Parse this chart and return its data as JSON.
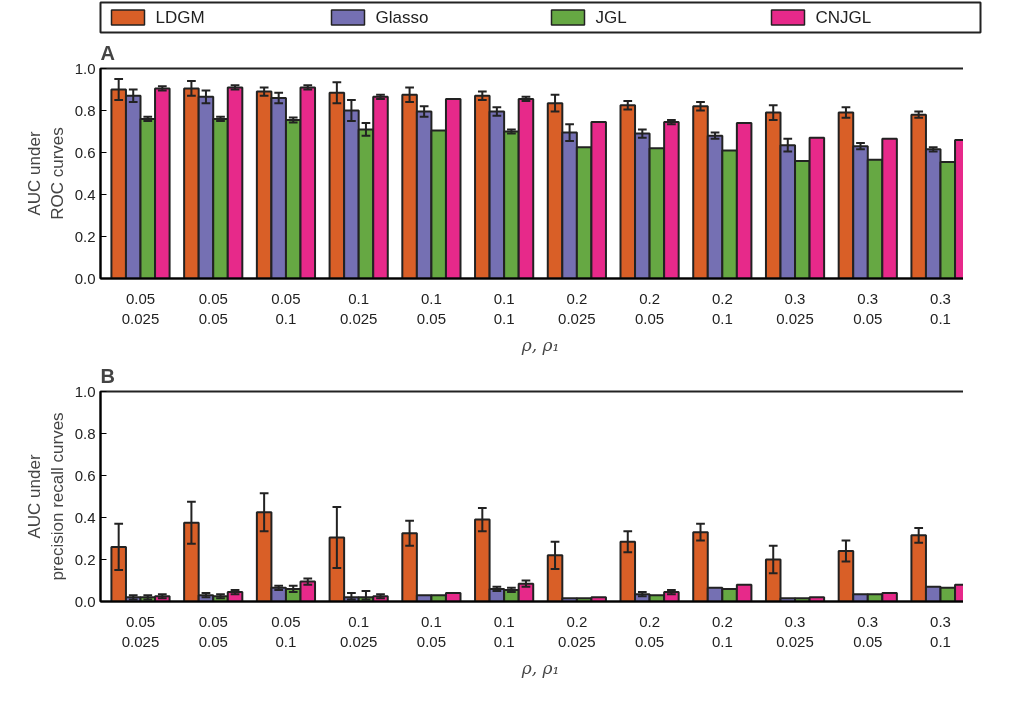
{
  "chart_data": [
    {
      "type": "bar",
      "title": "A",
      "ylabel": "AUC under\nROC curves",
      "xlabel": "ρ, ρ₁",
      "categories": [
        "0.05\n0.025",
        "0.05\n0.05",
        "0.05\n0.1",
        "0.1\n0.025",
        "0.1\n0.05",
        "0.1\n0.1",
        "0.2\n0.025",
        "0.2\n0.05",
        "0.2\n0.1",
        "0.3\n0.025",
        "0.3\n0.05",
        "0.3\n0.1"
      ],
      "series": [
        {
          "name": "LDGM",
          "color": "#d95f27",
          "values": [
            0.9,
            0.905,
            0.89,
            0.885,
            0.875,
            0.87,
            0.835,
            0.825,
            0.82,
            0.79,
            0.79,
            0.78
          ],
          "errors": [
            0.05,
            0.035,
            0.02,
            0.05,
            0.035,
            0.02,
            0.04,
            0.02,
            0.02,
            0.035,
            0.025,
            0.015
          ]
        },
        {
          "name": "Glasso",
          "color": "#7570b3",
          "values": [
            0.87,
            0.865,
            0.86,
            0.8,
            0.795,
            0.795,
            0.695,
            0.69,
            0.68,
            0.635,
            0.63,
            0.615
          ],
          "errors": [
            0.03,
            0.03,
            0.025,
            0.05,
            0.025,
            0.02,
            0.04,
            0.02,
            0.015,
            0.03,
            0.015,
            0.01
          ]
        },
        {
          "name": "JGL",
          "color": "#66a843",
          "values": [
            0.76,
            0.76,
            0.755,
            0.71,
            0.705,
            0.7,
            0.625,
            0.62,
            0.61,
            0.56,
            0.565,
            0.555
          ],
          "errors": [
            0.01,
            0.01,
            0.012,
            0.03,
            null,
            0.01,
            null,
            null,
            null,
            null,
            null,
            null
          ]
        },
        {
          "name": "CNJGL",
          "color": "#e7298a",
          "values": [
            0.905,
            0.91,
            0.91,
            0.865,
            0.855,
            0.855,
            0.745,
            0.745,
            0.74,
            0.67,
            0.665,
            0.66
          ],
          "errors": [
            0.01,
            0.01,
            0.01,
            0.01,
            null,
            0.01,
            null,
            0.01,
            null,
            null,
            null,
            null
          ]
        }
      ],
      "ylim": [
        0,
        1
      ],
      "yticks": [
        {
          "value": 0,
          "label": "0.0"
        },
        {
          "value": 0.2,
          "label": "0.2"
        },
        {
          "value": 0.4,
          "label": "0.4"
        },
        {
          "value": 0.6,
          "label": "0.6"
        },
        {
          "value": 0.8,
          "label": "0.8"
        },
        {
          "value": 1,
          "label": "1.0"
        }
      ],
      "legend": "top",
      "grid": false
    },
    {
      "type": "bar",
      "title": "B",
      "ylabel": "AUC under\nprecision recall curves",
      "xlabel": "ρ, ρ₁",
      "categories": [
        "0.05\n0.025",
        "0.05\n0.05",
        "0.05\n0.1",
        "0.1\n0.025",
        "0.1\n0.05",
        "0.1\n0.1",
        "0.2\n0.025",
        "0.2\n0.05",
        "0.2\n0.1",
        "0.3\n0.025",
        "0.3\n0.05",
        "0.3\n0.1"
      ],
      "series": [
        {
          "color": "#d95f27",
          "values": [
            0.26,
            0.375,
            0.425,
            0.305,
            0.325,
            0.39,
            0.22,
            0.285,
            0.33,
            0.2,
            0.24,
            0.315
          ],
          "errors": [
            0.11,
            0.1,
            0.09,
            0.145,
            0.06,
            0.055,
            0.065,
            0.05,
            0.04,
            0.065,
            0.05,
            0.035
          ]
        },
        {
          "color": "#7570b3",
          "values": [
            0.02,
            0.03,
            0.065,
            0.02,
            0.03,
            0.06,
            0.015,
            0.035,
            0.065,
            0.015,
            0.035,
            0.07
          ],
          "errors": [
            0.01,
            0.01,
            0.01,
            [
              0.01,
              0.04
            ],
            null,
            0.01,
            null,
            0.01,
            null,
            null,
            null,
            null
          ]
        },
        {
          "color": "#66a843",
          "values": [
            0.02,
            0.025,
            0.06,
            0.02,
            0.03,
            0.055,
            0.015,
            0.03,
            0.06,
            0.015,
            0.035,
            0.065
          ],
          "errors": [
            0.01,
            0.01,
            0.015,
            [
              0.01,
              0.05
            ],
            null,
            0.01,
            null,
            null,
            null,
            null,
            null,
            null
          ]
        },
        {
          "color": "#e7298a",
          "values": [
            0.025,
            0.045,
            0.095,
            0.025,
            0.04,
            0.085,
            0.02,
            0.045,
            0.08,
            0.02,
            0.04,
            0.08
          ],
          "errors": [
            0.01,
            0.01,
            0.015,
            0.01,
            null,
            0.015,
            null,
            0.01,
            null,
            null,
            null,
            null
          ]
        }
      ],
      "ylim": [
        0,
        1
      ],
      "yticks": [
        {
          "value": 0,
          "label": "0.0"
        },
        {
          "value": 0.2,
          "label": "0.2"
        },
        {
          "value": 0.4,
          "label": "0.4"
        },
        {
          "value": 0.6,
          "label": "0.6"
        },
        {
          "value": 0.8,
          "label": "0.8"
        },
        {
          "value": 1,
          "label": "1.0"
        }
      ],
      "grid": false
    }
  ]
}
